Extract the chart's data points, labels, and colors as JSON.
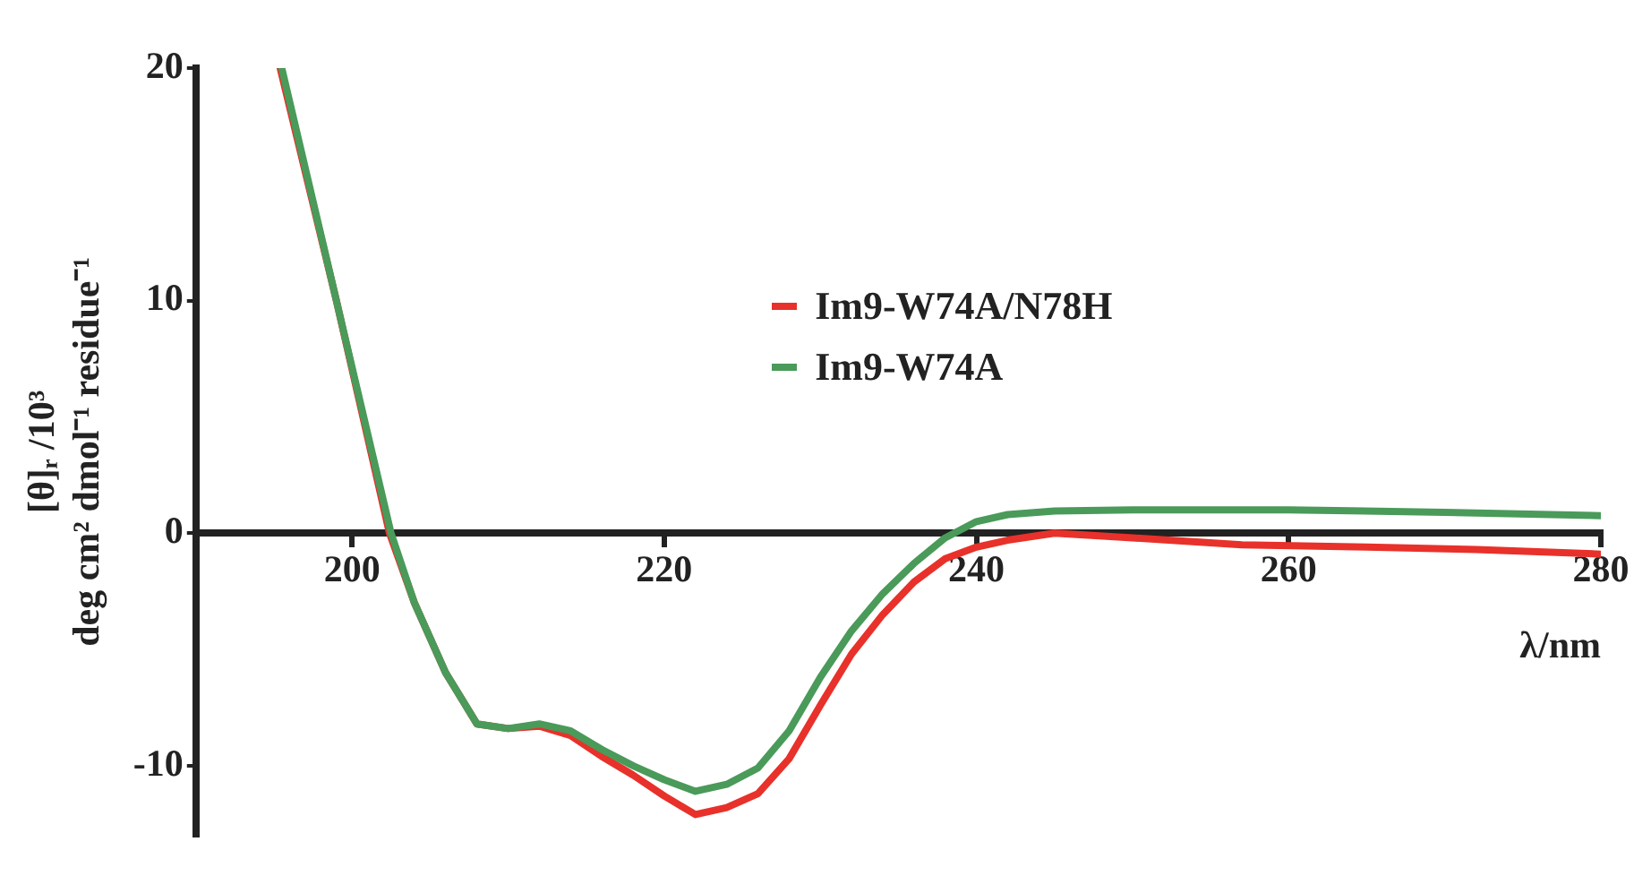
{
  "chart_data": {
    "type": "line",
    "xlabel": "λ/nm",
    "ylabel": [
      "[θ]ᵣ /10³",
      "deg cm² dmol⁻¹ residue⁻¹"
    ],
    "xlim": [
      190,
      280
    ],
    "xticks": [
      200,
      220,
      240,
      260,
      280
    ],
    "ylim": [
      -13,
      20
    ],
    "yticks": [
      -10,
      0,
      10,
      20
    ],
    "grid": false,
    "legend": "top right",
    "marker": "none",
    "line_style": "solid",
    "series": [
      {
        "name": "Im9-W74A/N78H",
        "color": "#e8312a",
        "x": [
          195.4,
          199,
          202.4,
          204,
          206,
          208,
          210,
          212,
          214,
          216,
          218,
          220,
          222,
          224,
          226,
          228,
          230,
          232,
          234,
          236,
          238,
          240,
          242,
          245,
          250,
          257,
          265,
          272,
          280
        ],
        "values": [
          20,
          10,
          0,
          -3,
          -6,
          -8.2,
          -8.4,
          -8.3,
          -8.7,
          -9.6,
          -10.4,
          -11.3,
          -12.1,
          -11.8,
          -11.2,
          -9.7,
          -7.4,
          -5.2,
          -3.5,
          -2.1,
          -1.1,
          -0.6,
          -0.3,
          0,
          -0.2,
          -0.5,
          -0.6,
          -0.7,
          -0.9
        ]
      },
      {
        "name": "Im9-W74A",
        "color": "#4a9a5a",
        "x": [
          195.5,
          199,
          202.5,
          204,
          206,
          208,
          210,
          212,
          214,
          216,
          218,
          220,
          222,
          224,
          226,
          228,
          230,
          232,
          234,
          236,
          238,
          240,
          242,
          245,
          250,
          260,
          270,
          280
        ],
        "values": [
          20,
          10,
          0,
          -3,
          -6,
          -8.2,
          -8.4,
          -8.2,
          -8.5,
          -9.3,
          -10,
          -10.6,
          -11.1,
          -10.8,
          -10.1,
          -8.5,
          -6.2,
          -4.2,
          -2.6,
          -1.3,
          -0.2,
          0.5,
          0.8,
          0.95,
          1,
          1,
          0.9,
          0.75
        ]
      }
    ]
  }
}
